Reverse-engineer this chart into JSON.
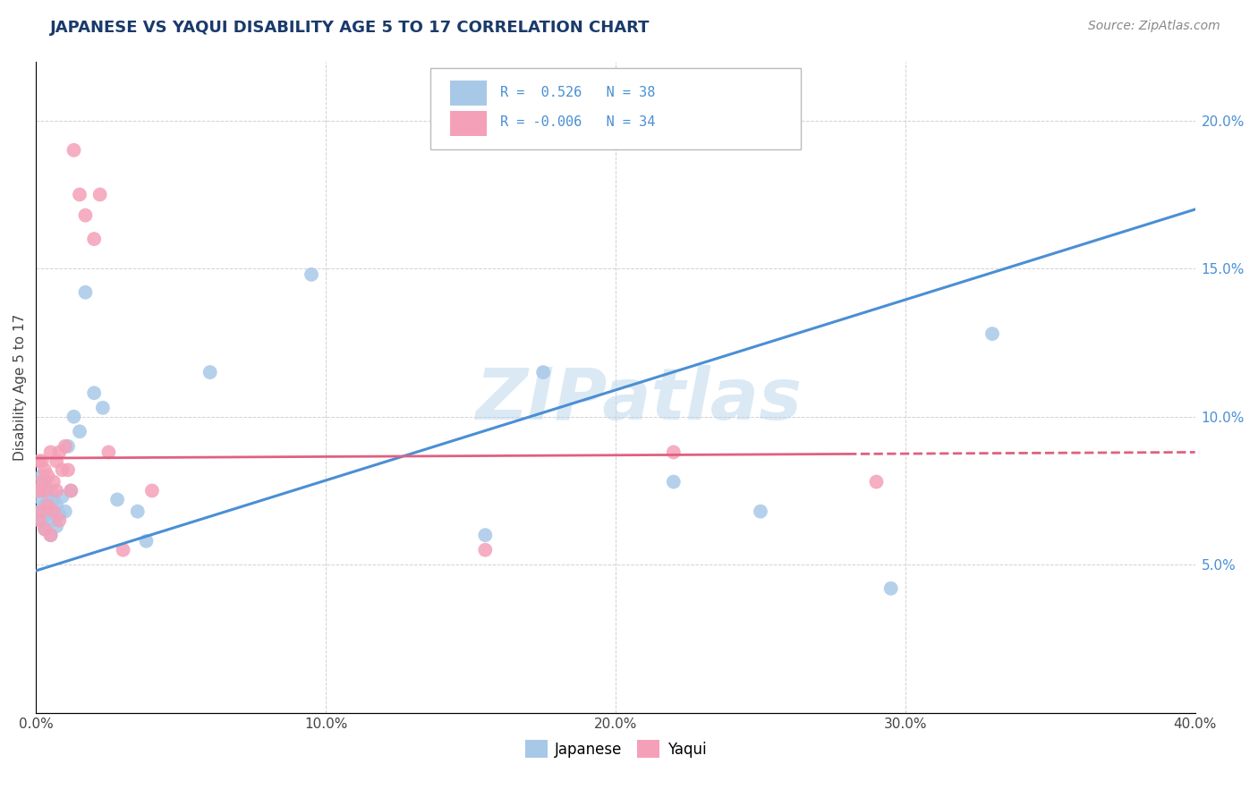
{
  "title": "JAPANESE VS YAQUI DISABILITY AGE 5 TO 17 CORRELATION CHART",
  "source_text": "Source: ZipAtlas.com",
  "ylabel": "Disability Age 5 to 17",
  "xlim": [
    0.0,
    0.4
  ],
  "ylim": [
    0.0,
    0.22
  ],
  "xtick_labels": [
    "0.0%",
    "10.0%",
    "20.0%",
    "30.0%",
    "40.0%"
  ],
  "xtick_values": [
    0.0,
    0.1,
    0.2,
    0.3,
    0.4
  ],
  "ytick_labels": [
    "5.0%",
    "10.0%",
    "15.0%",
    "20.0%"
  ],
  "ytick_values": [
    0.05,
    0.1,
    0.15,
    0.2
  ],
  "watermark": "ZIPatlas",
  "color_japanese": "#a8c8e8",
  "color_yaqui": "#f4a0b8",
  "color_line_japanese": "#4a8fd4",
  "color_line_yaqui": "#e06080",
  "background_color": "#ffffff",
  "grid_color": "#cccccc",
  "title_color": "#1a3a6b",
  "source_color": "#888888",
  "tick_color_right": "#4a8fd4",
  "japanese_x": [
    0.001,
    0.001,
    0.002,
    0.002,
    0.002,
    0.003,
    0.003,
    0.003,
    0.004,
    0.004,
    0.005,
    0.005,
    0.005,
    0.006,
    0.006,
    0.007,
    0.007,
    0.008,
    0.009,
    0.01,
    0.011,
    0.012,
    0.013,
    0.015,
    0.017,
    0.02,
    0.023,
    0.028,
    0.035,
    0.038,
    0.06,
    0.095,
    0.155,
    0.175,
    0.22,
    0.25,
    0.295,
    0.33
  ],
  "japanese_y": [
    0.068,
    0.075,
    0.065,
    0.072,
    0.08,
    0.062,
    0.07,
    0.078,
    0.067,
    0.073,
    0.06,
    0.068,
    0.075,
    0.065,
    0.072,
    0.063,
    0.07,
    0.067,
    0.073,
    0.068,
    0.09,
    0.075,
    0.1,
    0.095,
    0.142,
    0.108,
    0.103,
    0.072,
    0.068,
    0.058,
    0.115,
    0.148,
    0.06,
    0.115,
    0.078,
    0.068,
    0.042,
    0.128
  ],
  "yaqui_x": [
    0.001,
    0.001,
    0.001,
    0.002,
    0.002,
    0.002,
    0.003,
    0.003,
    0.003,
    0.004,
    0.004,
    0.005,
    0.005,
    0.006,
    0.006,
    0.007,
    0.007,
    0.008,
    0.008,
    0.009,
    0.01,
    0.011,
    0.012,
    0.013,
    0.015,
    0.017,
    0.02,
    0.022,
    0.025,
    0.03,
    0.04,
    0.155,
    0.22,
    0.29
  ],
  "yaqui_y": [
    0.085,
    0.075,
    0.065,
    0.085,
    0.078,
    0.068,
    0.082,
    0.075,
    0.062,
    0.08,
    0.07,
    0.06,
    0.088,
    0.078,
    0.068,
    0.085,
    0.075,
    0.065,
    0.088,
    0.082,
    0.09,
    0.082,
    0.075,
    0.19,
    0.175,
    0.168,
    0.16,
    0.175,
    0.088,
    0.055,
    0.075,
    0.055,
    0.088,
    0.078
  ],
  "jap_line_x0": 0.0,
  "jap_line_y0": 0.048,
  "jap_line_x1": 0.4,
  "jap_line_y1": 0.17,
  "yaqui_line_x0": 0.0,
  "yaqui_line_y0": 0.086,
  "yaqui_line_x1": 0.4,
  "yaqui_line_y1": 0.088
}
